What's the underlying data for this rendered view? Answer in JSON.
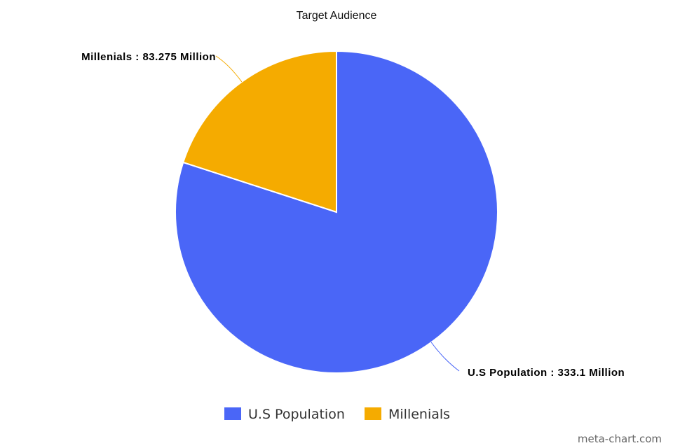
{
  "chart_data": {
    "type": "pie",
    "title": "Target Audience",
    "slices": [
      {
        "name": "U.S Population",
        "value": 333.1,
        "color": "#4a66f7",
        "label": "U.S Population : 333.1 Million"
      },
      {
        "name": "Millenials",
        "value": 83.275,
        "color": "#f5ab00",
        "label": "Millenials : 83.275 Million"
      }
    ],
    "legend": {
      "position": "bottom",
      "entries": [
        "U.S Population",
        "Millenials"
      ]
    }
  },
  "credit": "meta-chart.com"
}
